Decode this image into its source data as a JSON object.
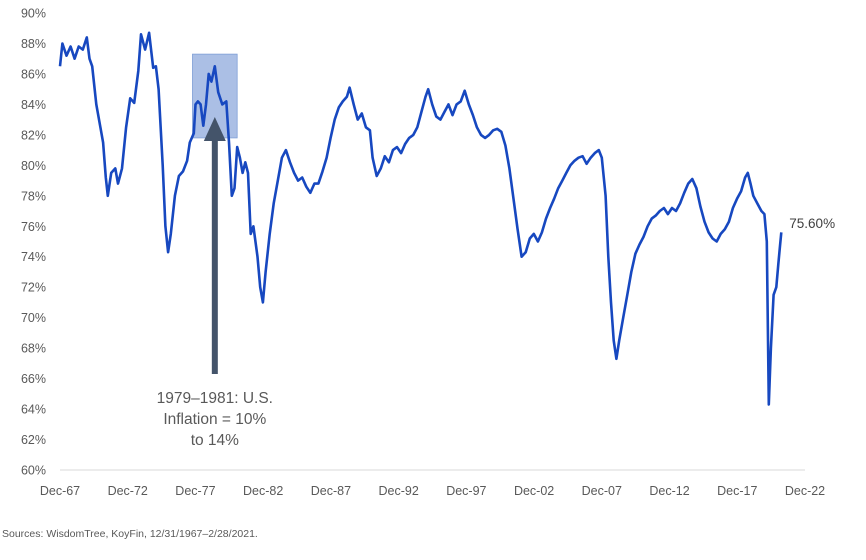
{
  "chart_data": {
    "type": "line",
    "title": "",
    "xlabel": "",
    "ylabel": "",
    "x_tick_labels": [
      "Dec-67",
      "Dec-72",
      "Dec-77",
      "Dec-82",
      "Dec-87",
      "Dec-92",
      "Dec-97",
      "Dec-02",
      "Dec-07",
      "Dec-12",
      "Dec-17",
      "Dec-22"
    ],
    "x_tick_years": [
      1967.92,
      1972.92,
      1977.92,
      1982.92,
      1987.92,
      1992.92,
      1997.92,
      2002.92,
      2007.92,
      2012.92,
      2017.92,
      2022.92
    ],
    "y_tick_labels": [
      "60%",
      "62%",
      "64%",
      "66%",
      "68%",
      "70%",
      "72%",
      "74%",
      "76%",
      "78%",
      "80%",
      "82%",
      "84%",
      "86%",
      "88%",
      "90%"
    ],
    "ylim": [
      60,
      90
    ],
    "xlim": [
      1967.92,
      2022.92
    ],
    "series": [
      {
        "color": "#1748C0",
        "points": [
          [
            1967.92,
            86.5
          ],
          [
            1968.1,
            88.0
          ],
          [
            1968.4,
            87.2
          ],
          [
            1968.7,
            87.8
          ],
          [
            1969.0,
            87.0
          ],
          [
            1969.3,
            87.8
          ],
          [
            1969.6,
            87.6
          ],
          [
            1969.9,
            88.4
          ],
          [
            1970.1,
            87.0
          ],
          [
            1970.3,
            86.5
          ],
          [
            1970.6,
            84.0
          ],
          [
            1970.9,
            82.5
          ],
          [
            1971.1,
            81.5
          ],
          [
            1971.3,
            79.2
          ],
          [
            1971.45,
            78.0
          ],
          [
            1971.7,
            79.5
          ],
          [
            1972.0,
            79.8
          ],
          [
            1972.2,
            78.8
          ],
          [
            1972.5,
            79.8
          ],
          [
            1972.8,
            82.5
          ],
          [
            1973.1,
            84.4
          ],
          [
            1973.4,
            84.1
          ],
          [
            1973.7,
            86.2
          ],
          [
            1973.9,
            88.6
          ],
          [
            1974.2,
            87.6
          ],
          [
            1974.5,
            88.7
          ],
          [
            1974.8,
            86.4
          ],
          [
            1975.0,
            86.5
          ],
          [
            1975.2,
            85.0
          ],
          [
            1975.5,
            80.0
          ],
          [
            1975.7,
            76.0
          ],
          [
            1975.9,
            74.3
          ],
          [
            1976.1,
            75.5
          ],
          [
            1976.4,
            78.0
          ],
          [
            1976.7,
            79.3
          ],
          [
            1977.0,
            79.6
          ],
          [
            1977.3,
            80.3
          ],
          [
            1977.5,
            81.5
          ],
          [
            1977.8,
            82.1
          ],
          [
            1977.92,
            84.0
          ],
          [
            1978.1,
            84.2
          ],
          [
            1978.3,
            84.0
          ],
          [
            1978.5,
            82.6
          ],
          [
            1978.7,
            84.0
          ],
          [
            1978.9,
            86.0
          ],
          [
            1979.1,
            85.5
          ],
          [
            1979.35,
            86.5
          ],
          [
            1979.6,
            84.8
          ],
          [
            1979.9,
            84.0
          ],
          [
            1980.2,
            84.2
          ],
          [
            1980.4,
            81.5
          ],
          [
            1980.6,
            78.0
          ],
          [
            1980.8,
            78.5
          ],
          [
            1981.0,
            81.2
          ],
          [
            1981.2,
            80.5
          ],
          [
            1981.4,
            79.5
          ],
          [
            1981.6,
            80.2
          ],
          [
            1981.8,
            79.5
          ],
          [
            1982.0,
            75.5
          ],
          [
            1982.2,
            76.0
          ],
          [
            1982.5,
            74.0
          ],
          [
            1982.7,
            72.0
          ],
          [
            1982.9,
            71.0
          ],
          [
            1983.1,
            73.0
          ],
          [
            1983.4,
            75.5
          ],
          [
            1983.7,
            77.5
          ],
          [
            1984.0,
            79.0
          ],
          [
            1984.3,
            80.5
          ],
          [
            1984.6,
            81.0
          ],
          [
            1984.9,
            80.2
          ],
          [
            1985.2,
            79.5
          ],
          [
            1985.5,
            79.0
          ],
          [
            1985.8,
            79.2
          ],
          [
            1986.1,
            78.6
          ],
          [
            1986.4,
            78.2
          ],
          [
            1986.7,
            78.8
          ],
          [
            1987.0,
            78.8
          ],
          [
            1987.3,
            79.6
          ],
          [
            1987.6,
            80.5
          ],
          [
            1987.9,
            81.8
          ],
          [
            1988.2,
            83.0
          ],
          [
            1988.5,
            83.8
          ],
          [
            1988.8,
            84.2
          ],
          [
            1989.1,
            84.5
          ],
          [
            1989.3,
            85.1
          ],
          [
            1989.6,
            84.0
          ],
          [
            1989.9,
            83.0
          ],
          [
            1990.2,
            83.4
          ],
          [
            1990.5,
            82.5
          ],
          [
            1990.8,
            82.3
          ],
          [
            1991.0,
            80.5
          ],
          [
            1991.3,
            79.3
          ],
          [
            1991.6,
            79.8
          ],
          [
            1991.9,
            80.6
          ],
          [
            1992.2,
            80.2
          ],
          [
            1992.5,
            81.0
          ],
          [
            1992.8,
            81.2
          ],
          [
            1993.1,
            80.8
          ],
          [
            1993.4,
            81.4
          ],
          [
            1993.7,
            81.8
          ],
          [
            1994.0,
            82.0
          ],
          [
            1994.3,
            82.5
          ],
          [
            1994.6,
            83.5
          ],
          [
            1994.9,
            84.5
          ],
          [
            1995.1,
            85.0
          ],
          [
            1995.4,
            84.0
          ],
          [
            1995.7,
            83.2
          ],
          [
            1996.0,
            83.0
          ],
          [
            1996.3,
            83.5
          ],
          [
            1996.6,
            84.0
          ],
          [
            1996.9,
            83.3
          ],
          [
            1997.2,
            84.0
          ],
          [
            1997.5,
            84.2
          ],
          [
            1997.8,
            84.9
          ],
          [
            1998.1,
            84.0
          ],
          [
            1998.4,
            83.3
          ],
          [
            1998.7,
            82.5
          ],
          [
            1999.0,
            82.0
          ],
          [
            1999.3,
            81.8
          ],
          [
            1999.6,
            82.0
          ],
          [
            1999.9,
            82.3
          ],
          [
            2000.2,
            82.4
          ],
          [
            2000.5,
            82.2
          ],
          [
            2000.8,
            81.3
          ],
          [
            2001.1,
            79.8
          ],
          [
            2001.4,
            77.8
          ],
          [
            2001.7,
            75.8
          ],
          [
            2002.0,
            74.0
          ],
          [
            2002.3,
            74.3
          ],
          [
            2002.6,
            75.2
          ],
          [
            2002.9,
            75.5
          ],
          [
            2003.2,
            75.0
          ],
          [
            2003.5,
            75.6
          ],
          [
            2003.8,
            76.5
          ],
          [
            2004.1,
            77.2
          ],
          [
            2004.4,
            77.8
          ],
          [
            2004.7,
            78.5
          ],
          [
            2005.0,
            79.0
          ],
          [
            2005.3,
            79.5
          ],
          [
            2005.6,
            80.0
          ],
          [
            2005.9,
            80.3
          ],
          [
            2006.2,
            80.5
          ],
          [
            2006.5,
            80.6
          ],
          [
            2006.8,
            80.1
          ],
          [
            2007.1,
            80.5
          ],
          [
            2007.4,
            80.8
          ],
          [
            2007.7,
            81.0
          ],
          [
            2007.92,
            80.5
          ],
          [
            2008.2,
            78.0
          ],
          [
            2008.4,
            74.0
          ],
          [
            2008.6,
            71.0
          ],
          [
            2008.8,
            68.5
          ],
          [
            2009.0,
            67.3
          ],
          [
            2009.2,
            68.5
          ],
          [
            2009.5,
            70.0
          ],
          [
            2009.8,
            71.5
          ],
          [
            2010.1,
            73.0
          ],
          [
            2010.4,
            74.2
          ],
          [
            2010.7,
            74.8
          ],
          [
            2011.0,
            75.3
          ],
          [
            2011.3,
            76.0
          ],
          [
            2011.6,
            76.5
          ],
          [
            2011.9,
            76.7
          ],
          [
            2012.2,
            77.0
          ],
          [
            2012.5,
            77.2
          ],
          [
            2012.8,
            76.8
          ],
          [
            2013.1,
            77.2
          ],
          [
            2013.4,
            77.0
          ],
          [
            2013.7,
            77.5
          ],
          [
            2014.0,
            78.2
          ],
          [
            2014.3,
            78.8
          ],
          [
            2014.6,
            79.1
          ],
          [
            2014.9,
            78.5
          ],
          [
            2015.2,
            77.3
          ],
          [
            2015.5,
            76.3
          ],
          [
            2015.8,
            75.6
          ],
          [
            2016.1,
            75.2
          ],
          [
            2016.4,
            75.0
          ],
          [
            2016.7,
            75.5
          ],
          [
            2017.0,
            75.8
          ],
          [
            2017.3,
            76.3
          ],
          [
            2017.6,
            77.2
          ],
          [
            2017.9,
            77.8
          ],
          [
            2018.2,
            78.3
          ],
          [
            2018.5,
            79.2
          ],
          [
            2018.7,
            79.5
          ],
          [
            2018.9,
            78.8
          ],
          [
            2019.1,
            78.0
          ],
          [
            2019.4,
            77.5
          ],
          [
            2019.7,
            77.0
          ],
          [
            2019.92,
            76.8
          ],
          [
            2020.1,
            75.0
          ],
          [
            2020.25,
            64.3
          ],
          [
            2020.4,
            68.0
          ],
          [
            2020.6,
            71.5
          ],
          [
            2020.8,
            72.0
          ],
          [
            2020.95,
            73.5
          ],
          [
            2021.05,
            74.5
          ],
          [
            2021.17,
            75.6
          ]
        ]
      }
    ],
    "end_label": "75.60%",
    "annotation": {
      "lines": [
        "1979–1981: U.S.",
        "Inflation = 10%",
        "to 14%"
      ],
      "highlight_x": [
        1977.7,
        1981.0
      ],
      "highlight_y": [
        81.8,
        87.3
      ],
      "highlight_color": "#8FAADC",
      "arrow_color": "#44546A"
    },
    "grid": false
  },
  "source_text": "Sources: WisdomTree, KoyFin, 12/31/1967–2/28/2021."
}
